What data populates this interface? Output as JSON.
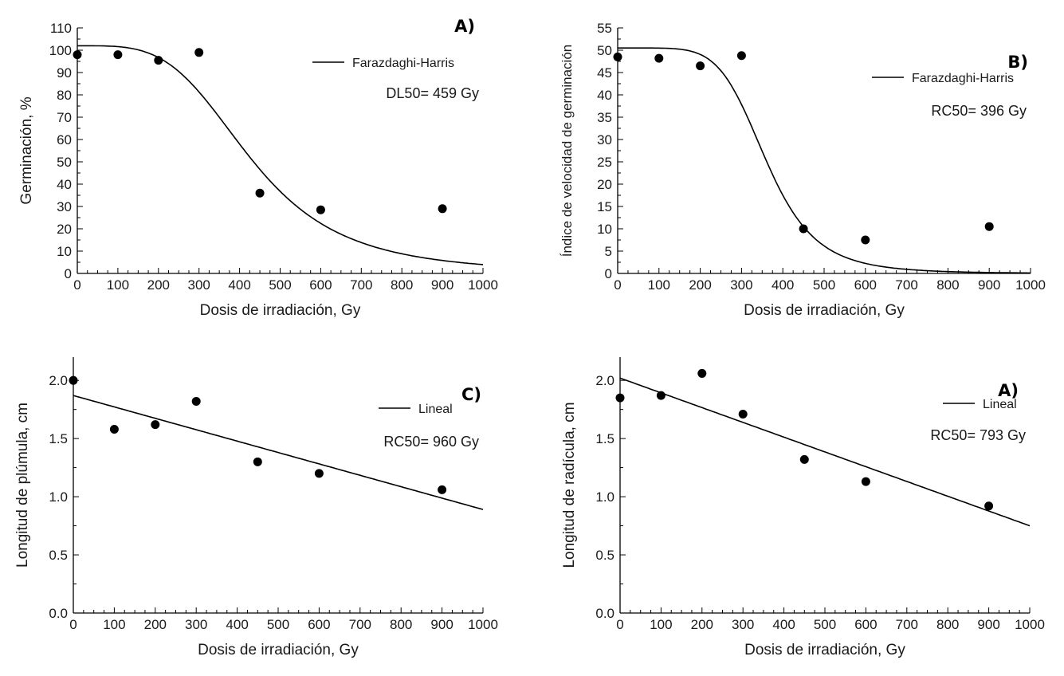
{
  "colors": {
    "ink": "#000000",
    "text": "#1a1a1a",
    "background": "#ffffff"
  },
  "chart_data": [
    {
      "type": "scatter",
      "panel_label": "A)",
      "title": "",
      "xlabel": "Dosis de irradiación, Gy",
      "ylabel": "Germinación, %",
      "xlim": [
        0,
        1000
      ],
      "ylim": [
        0,
        110
      ],
      "xticks": [
        0,
        100,
        200,
        300,
        400,
        500,
        600,
        700,
        800,
        900,
        1000
      ],
      "yticks": [
        0,
        10,
        20,
        30,
        40,
        50,
        60,
        70,
        80,
        90,
        100,
        110
      ],
      "tick_decimals": 0,
      "points": {
        "x": [
          0,
          100,
          200,
          300,
          450,
          600,
          900
        ],
        "y": [
          98,
          98,
          95.5,
          99,
          36,
          28.5,
          29
        ]
      },
      "fit": {
        "name": "Farazdaghi-Harris",
        "model": "sigmoid",
        "top": 102,
        "center": 430,
        "steepness": 3.8
      },
      "legend": "Farazdaghi-Harris",
      "annotation": "DL50= 459 Gy",
      "legend_position": "top-right"
    },
    {
      "type": "scatter",
      "panel_label": "B)",
      "title": "",
      "xlabel": "Dosis de irradiación, Gy",
      "ylabel": "Índice de velocidad de germinación",
      "xlim": [
        0,
        1000
      ],
      "ylim": [
        0,
        55
      ],
      "xticks": [
        0,
        100,
        200,
        300,
        400,
        500,
        600,
        700,
        800,
        900,
        1000
      ],
      "yticks": [
        0,
        5,
        10,
        15,
        20,
        25,
        30,
        35,
        40,
        45,
        50,
        55
      ],
      "tick_decimals": 0,
      "points": {
        "x": [
          0,
          100,
          200,
          300,
          450,
          600,
          900
        ],
        "y": [
          48.5,
          48.2,
          46.5,
          48.8,
          10,
          7.5,
          10.5
        ]
      },
      "fit": {
        "name": "Farazdaghi-Harris",
        "model": "sigmoid",
        "top": 50.5,
        "center": 360,
        "steepness": 6
      },
      "legend": "Farazdaghi-Harris",
      "annotation": "RC50= 396 Gy",
      "legend_position": "top-right"
    },
    {
      "type": "scatter",
      "panel_label": "C)",
      "title": "",
      "xlabel": "Dosis de irradiación, Gy",
      "ylabel": "Longitud de plúmula, cm",
      "xlim": [
        0,
        1000
      ],
      "ylim": [
        0,
        2.2
      ],
      "xticks": [
        0,
        100,
        200,
        300,
        400,
        500,
        600,
        700,
        800,
        900,
        1000
      ],
      "yticks": [
        0,
        0.5,
        1.0,
        1.5,
        2.0
      ],
      "tick_decimals": 1,
      "points": {
        "x": [
          0,
          100,
          200,
          300,
          450,
          600,
          900
        ],
        "y": [
          2.0,
          1.58,
          1.62,
          1.82,
          1.3,
          1.2,
          1.06
        ]
      },
      "fit": {
        "name": "Lineal",
        "model": "linear",
        "intercept": 1.87,
        "slope": -0.00098
      },
      "legend": "Lineal",
      "annotation": "RC50= 960 Gy",
      "legend_position": "top-right"
    },
    {
      "type": "scatter",
      "panel_label": "A)",
      "title": "",
      "xlabel": "Dosis de irradiación, Gy",
      "ylabel": "Longitud de radícula, cm",
      "xlim": [
        0,
        1000
      ],
      "ylim": [
        0,
        2.2
      ],
      "xticks": [
        0,
        100,
        200,
        300,
        400,
        500,
        600,
        700,
        800,
        900,
        1000
      ],
      "yticks": [
        0,
        0.5,
        1.0,
        1.5,
        2.0
      ],
      "tick_decimals": 1,
      "points": {
        "x": [
          0,
          100,
          200,
          300,
          450,
          600,
          900
        ],
        "y": [
          1.85,
          1.87,
          2.06,
          1.71,
          1.32,
          1.13,
          0.92
        ]
      },
      "fit": {
        "name": "Lineal",
        "model": "linear",
        "intercept": 2.02,
        "slope": -0.00127
      },
      "legend": "Lineal",
      "annotation": "RC50= 793 Gy",
      "legend_position": "top-right"
    }
  ]
}
